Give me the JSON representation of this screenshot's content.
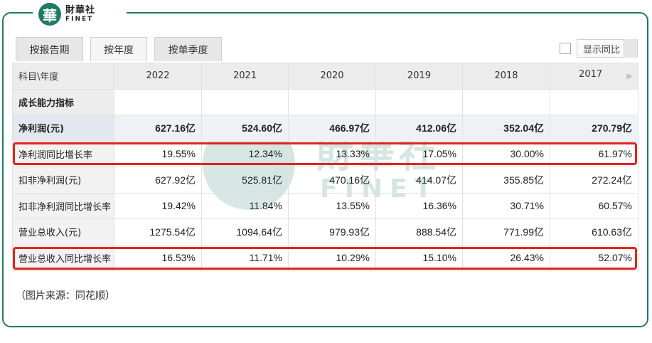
{
  "brand": {
    "mark": "華",
    "name_cn": "財華社",
    "name_en": "FINET"
  },
  "tabs": [
    {
      "label": "按报告期",
      "active": false
    },
    {
      "label": "按年度",
      "active": true
    },
    {
      "label": "按单季度",
      "active": false
    }
  ],
  "compare": {
    "label": "显示同比",
    "checked": false
  },
  "table": {
    "header_label": "科目\\年度",
    "years": [
      "2022",
      "2021",
      "2020",
      "2019",
      "2018",
      "2017"
    ],
    "section_title": "成长能力指标",
    "rows": [
      {
        "label": "净利润(元)",
        "values": [
          "627.16亿",
          "524.60亿",
          "466.97亿",
          "412.06亿",
          "352.04亿",
          "270.79亿"
        ],
        "bold": true,
        "highlight": false
      },
      {
        "label": "净利润同比增长率",
        "values": [
          "19.55%",
          "12.34%",
          "13.33%",
          "17.05%",
          "30.00%",
          "61.97%"
        ],
        "bold": false,
        "highlight": true
      },
      {
        "label": "扣非净利润(元)",
        "values": [
          "627.92亿",
          "525.81亿",
          "470.16亿",
          "414.07亿",
          "355.85亿",
          "272.24亿"
        ],
        "bold": false,
        "highlight": false
      },
      {
        "label": "扣非净利润同比增长率",
        "values": [
          "19.42%",
          "11.84%",
          "13.55%",
          "16.36%",
          "30.71%",
          "60.57%"
        ],
        "bold": false,
        "highlight": false
      },
      {
        "label": "营业总收入(元)",
        "values": [
          "1275.54亿",
          "1094.64亿",
          "979.93亿",
          "888.54亿",
          "771.99亿",
          "610.63亿"
        ],
        "bold": false,
        "highlight": false
      },
      {
        "label": "营业总收入同比增长率",
        "values": [
          "16.53%",
          "11.71%",
          "10.29%",
          "15.10%",
          "26.43%",
          "52.07%"
        ],
        "bold": false,
        "highlight": true
      }
    ]
  },
  "watermark": {
    "cn": "財華社",
    "en": "FINET"
  },
  "source_note": "（图片来源：同花顺）",
  "colors": {
    "brand": "#1f7a64",
    "highlight": "#e0251c"
  }
}
